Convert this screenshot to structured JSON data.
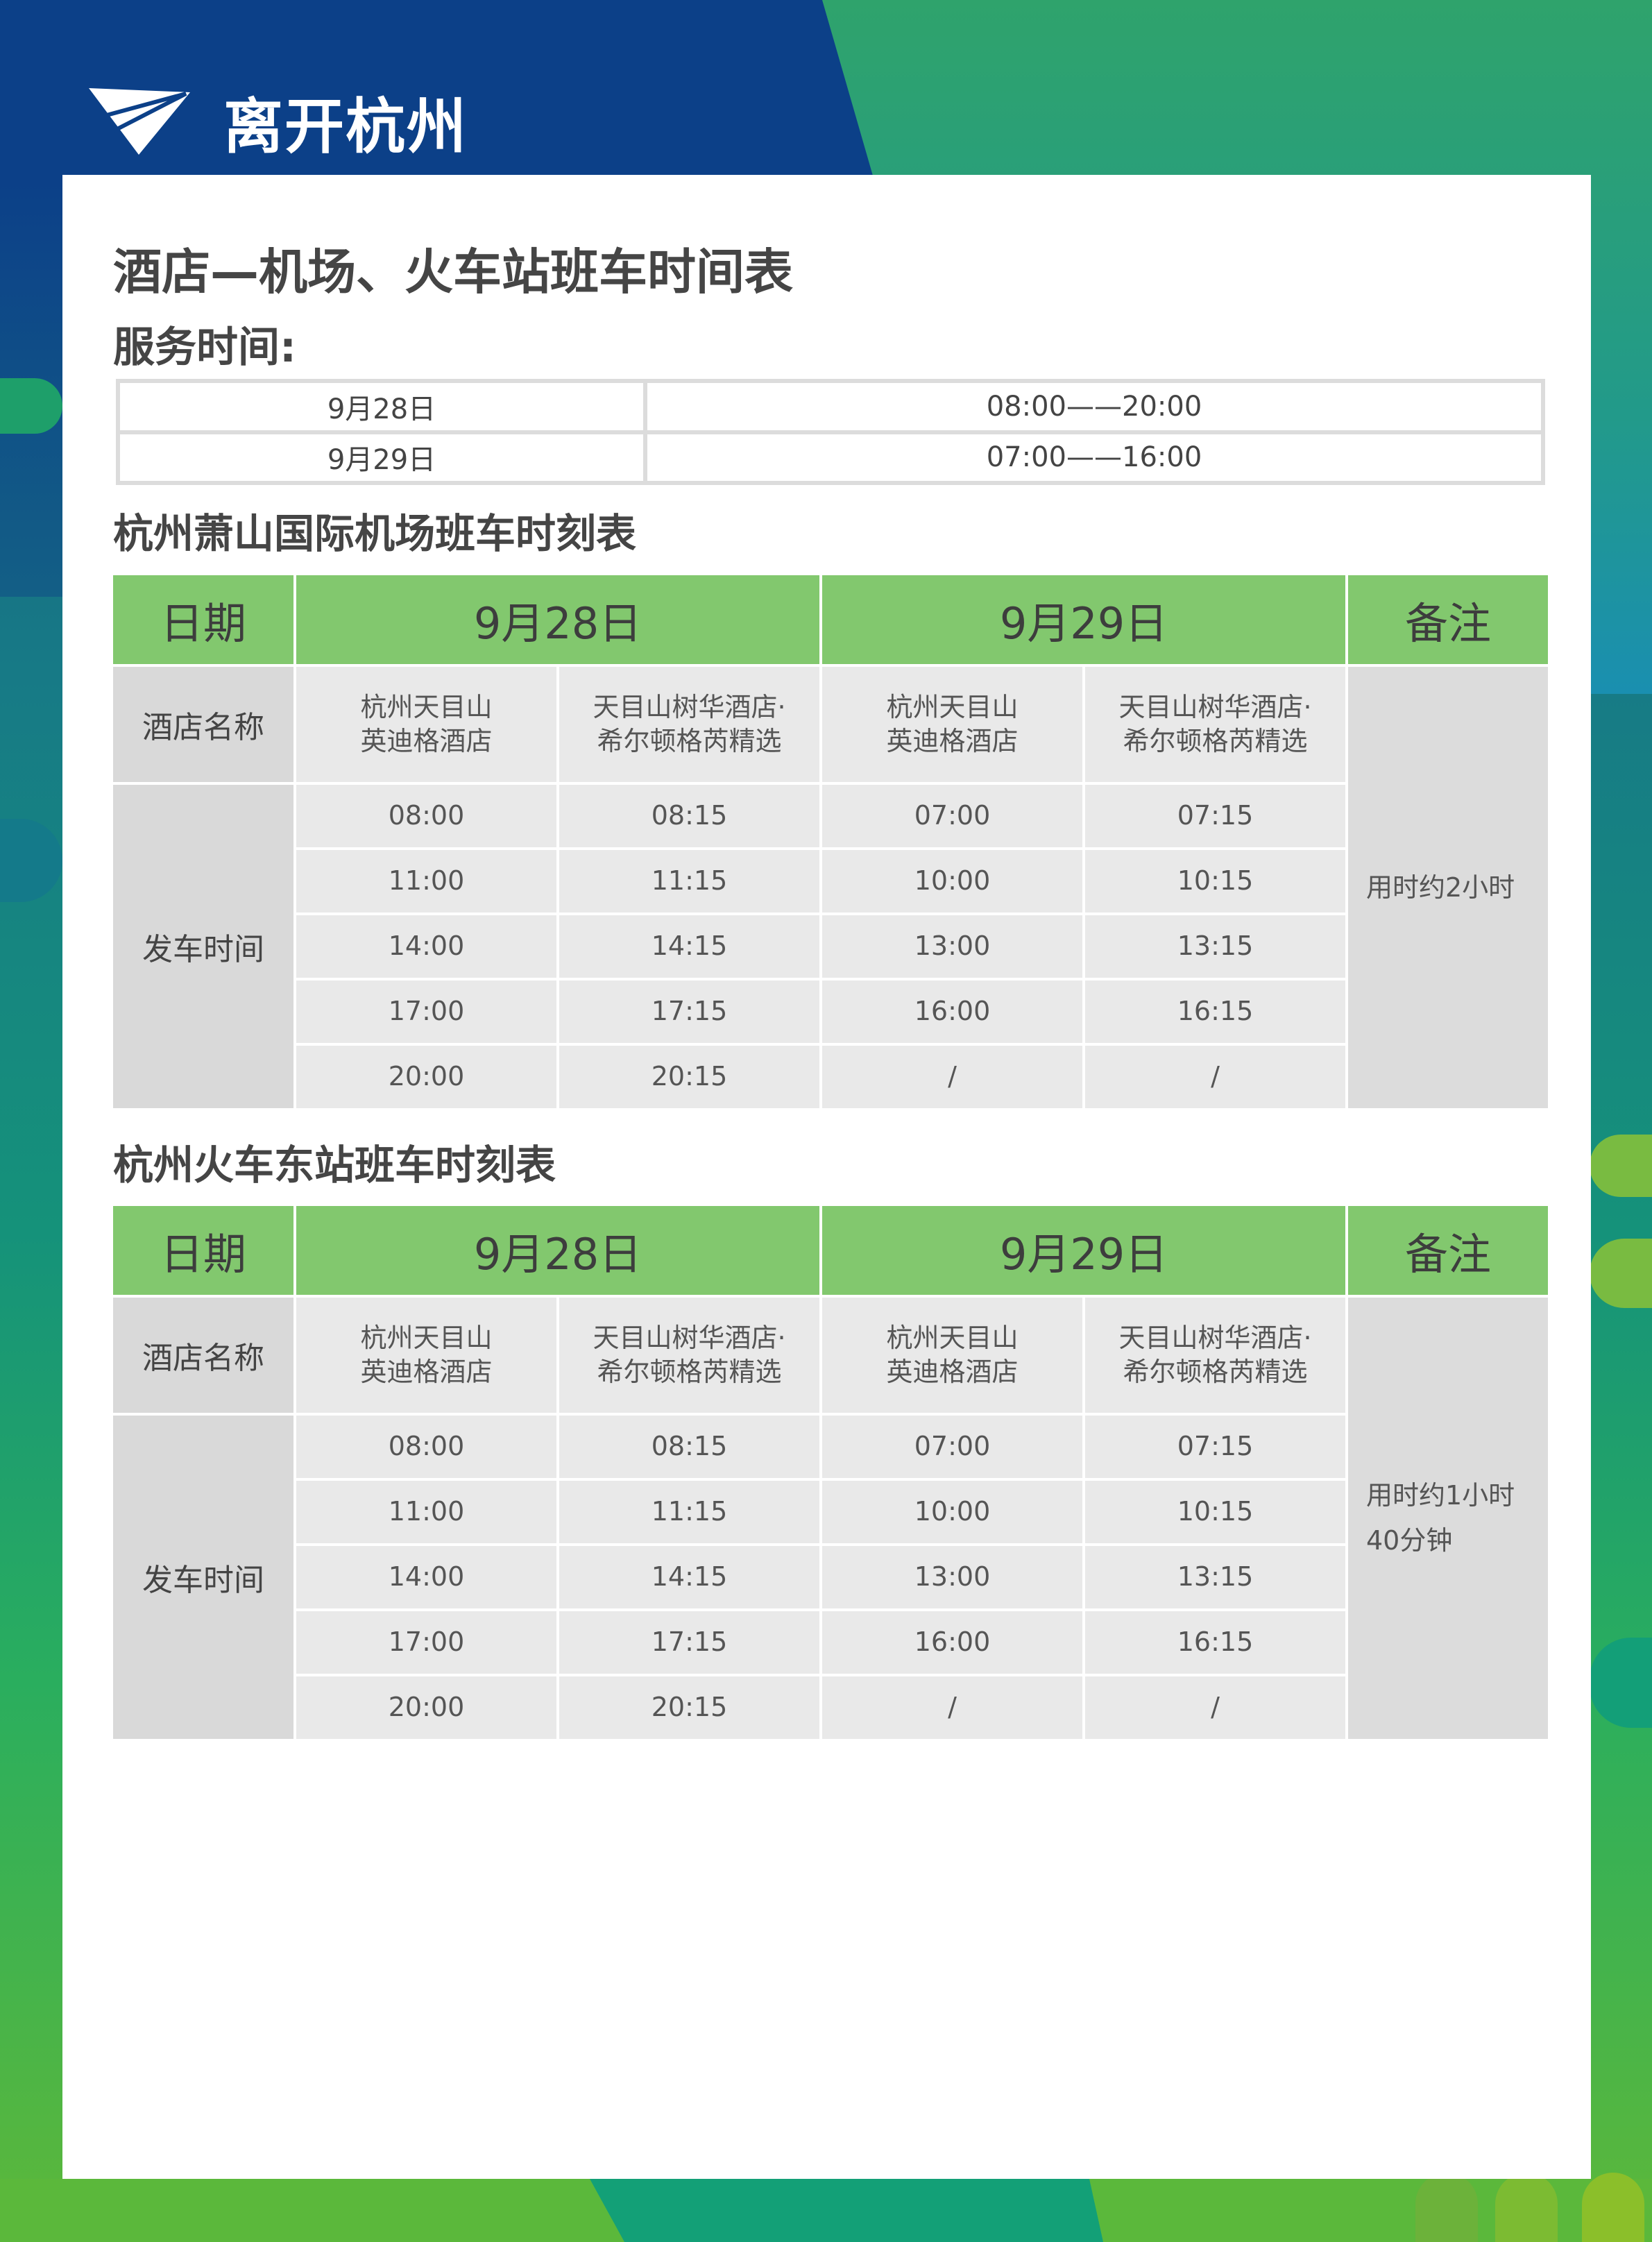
{
  "header": {
    "title": "离开杭州",
    "icon": "paper-plane-icon"
  },
  "colors": {
    "accent_green": "#82c86e",
    "brand_blue": "#0c4088"
  },
  "main_title": "酒店—机场、火车站班车时间表",
  "service": {
    "label": "服务时间:",
    "rows": [
      {
        "date": "9月28日",
        "hours": "08:00——20:00"
      },
      {
        "date": "9月29日",
        "hours": "07:00——16:00"
      }
    ]
  },
  "tables": [
    {
      "title": "杭州萧山国际机场班车时刻表",
      "head": {
        "date": "日期",
        "day1": "9月28日",
        "day2": "9月29日",
        "note": "备注"
      },
      "hotel_label": "酒店名称",
      "hotels": [
        "杭州天目山\n英迪格酒店",
        "天目山树华酒店·\n希尔顿格芮精选",
        "杭州天目山\n英迪格酒店",
        "天目山树华酒店·\n希尔顿格芮精选"
      ],
      "depart_label": "发车时间",
      "times": [
        [
          "08:00",
          "08:15",
          "07:00",
          "07:15"
        ],
        [
          "11:00",
          "11:15",
          "10:00",
          "10:15"
        ],
        [
          "14:00",
          "14:15",
          "13:00",
          "13:15"
        ],
        [
          "17:00",
          "17:15",
          "16:00",
          "16:15"
        ],
        [
          "20:00",
          "20:15",
          "/",
          "/"
        ]
      ],
      "note": "用时约2小时"
    },
    {
      "title": "杭州火车东站班车时刻表",
      "head": {
        "date": "日期",
        "day1": "9月28日",
        "day2": "9月29日",
        "note": "备注"
      },
      "hotel_label": "酒店名称",
      "hotels": [
        "杭州天目山\n英迪格酒店",
        "天目山树华酒店·\n希尔顿格芮精选",
        "杭州天目山\n英迪格酒店",
        "天目山树华酒店·\n希尔顿格芮精选"
      ],
      "depart_label": "发车时间",
      "times": [
        [
          "08:00",
          "08:15",
          "07:00",
          "07:15"
        ],
        [
          "11:00",
          "11:15",
          "10:00",
          "10:15"
        ],
        [
          "14:00",
          "14:15",
          "13:00",
          "13:15"
        ],
        [
          "17:00",
          "17:15",
          "16:00",
          "16:15"
        ],
        [
          "20:00",
          "20:15",
          "/",
          "/"
        ]
      ],
      "note": "用时约1小时\n40分钟"
    }
  ]
}
